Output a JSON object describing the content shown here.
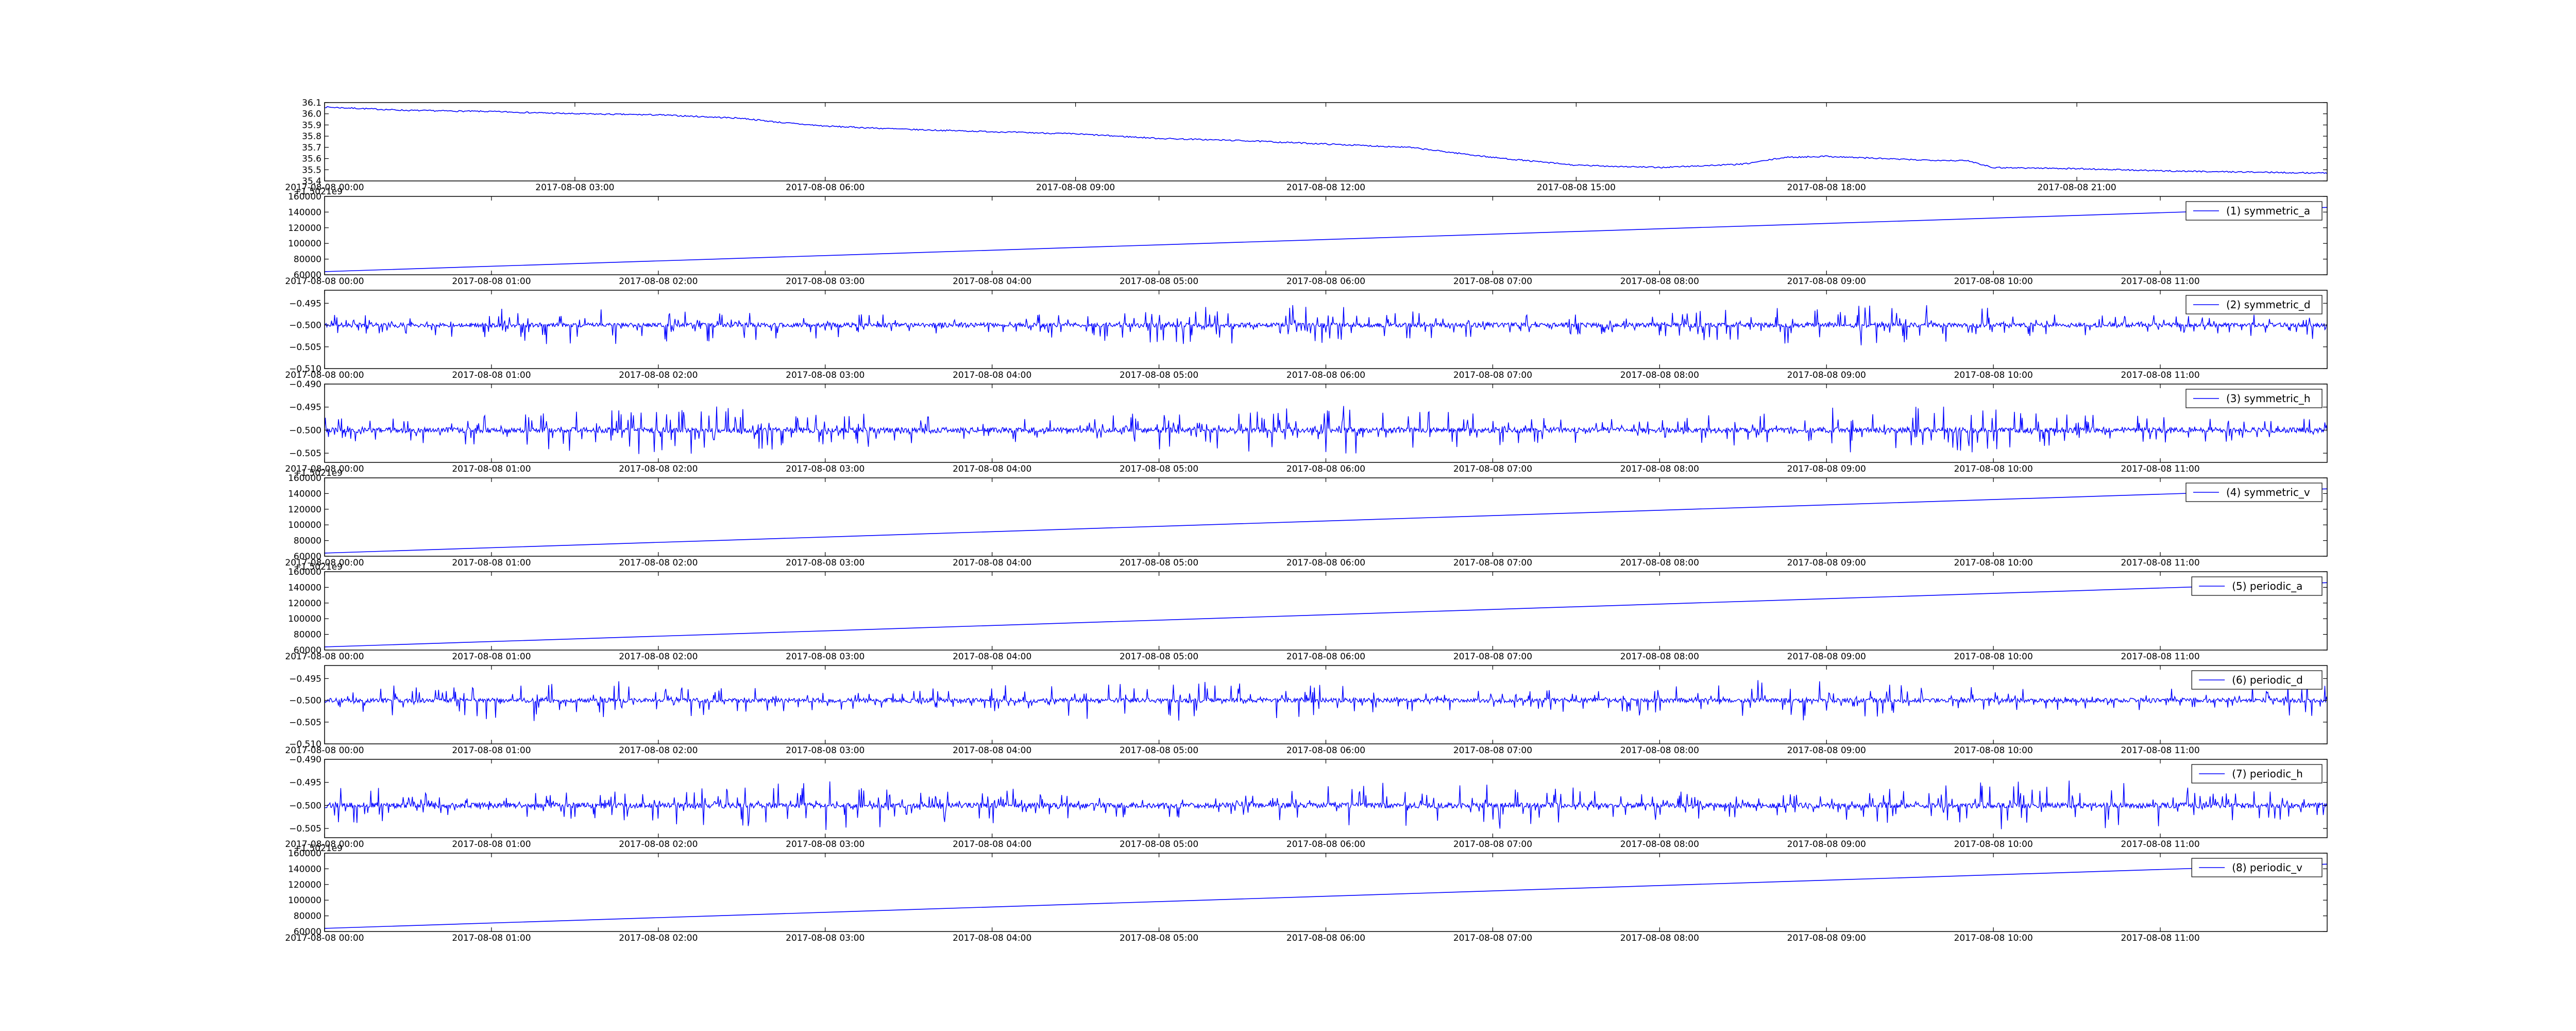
{
  "chart_data": [
    {
      "type": "line",
      "color": "#0000ff",
      "grid": false,
      "legend": "",
      "ylim": [
        35.4,
        36.1
      ],
      "yticks": [
        "35.4",
        "35.5",
        "35.6",
        "35.7",
        "35.8",
        "35.9",
        "36.0",
        "36.1"
      ],
      "xlim": [
        0,
        24
      ],
      "x_tick_positions": [
        0,
        3,
        6,
        9,
        12,
        15,
        18,
        21
      ],
      "x_tick_labels": [
        "2017-08-08 00:00",
        "2017-08-08 03:00",
        "2017-08-08 06:00",
        "2017-08-08 09:00",
        "2017-08-08 12:00",
        "2017-08-08 15:00",
        "2017-08-08 18:00",
        "2017-08-08 21:00"
      ],
      "offset_text": "",
      "series": [
        {
          "shape": "profile",
          "points": [
            [
              0,
              36.06
            ],
            [
              1,
              36.03
            ],
            [
              2,
              36.02
            ],
            [
              3,
              36.0
            ],
            [
              4,
              35.99
            ],
            [
              5,
              35.96
            ],
            [
              5.5,
              35.92
            ],
            [
              6,
              35.89
            ],
            [
              7,
              35.86
            ],
            [
              8,
              35.84
            ],
            [
              9,
              35.82
            ],
            [
              10,
              35.78
            ],
            [
              11,
              35.76
            ],
            [
              12,
              35.73
            ],
            [
              13,
              35.7
            ],
            [
              14,
              35.61
            ],
            [
              15,
              35.54
            ],
            [
              16,
              35.52
            ],
            [
              17,
              35.55
            ],
            [
              17.5,
              35.61
            ],
            [
              18,
              35.62
            ],
            [
              19,
              35.59
            ],
            [
              19.7,
              35.58
            ],
            [
              20,
              35.52
            ],
            [
              21,
              35.51
            ],
            [
              22,
              35.49
            ],
            [
              23,
              35.48
            ],
            [
              24,
              35.47
            ]
          ],
          "noise": 0.006
        }
      ]
    },
    {
      "type": "line",
      "color": "#0000ff",
      "grid": false,
      "legend": "upper right",
      "ylim": [
        60000,
        160000
      ],
      "yticks": [
        "60000",
        "80000",
        "100000",
        "120000",
        "140000",
        "160000"
      ],
      "xlim": [
        0,
        12
      ],
      "x_tick_positions": [
        0,
        1,
        2,
        3,
        4,
        5,
        6,
        7,
        8,
        9,
        10,
        11
      ],
      "x_tick_labels": [
        "2017-08-08 00:00",
        "2017-08-08 01:00",
        "2017-08-08 02:00",
        "2017-08-08 03:00",
        "2017-08-08 04:00",
        "2017-08-08 05:00",
        "2017-08-08 06:00",
        "2017-08-08 07:00",
        "2017-08-08 08:00",
        "2017-08-08 09:00",
        "2017-08-08 10:00",
        "2017-08-08 11:00"
      ],
      "offset_text": "+1.5021e9",
      "series": [
        {
          "name": "(1) symmetric_a",
          "shape": "linear",
          "points": [
            [
              0,
              64000
            ],
            [
              12,
              146000
            ]
          ]
        }
      ]
    },
    {
      "type": "line",
      "color": "#0000ff",
      "grid": false,
      "legend": "upper right",
      "ylim": [
        -0.51,
        -0.492
      ],
      "yticks": [
        "−0.510",
        "−0.505",
        "−0.500",
        "−0.495"
      ],
      "ytick_values": [
        -0.51,
        -0.505,
        -0.5,
        -0.495
      ],
      "xlim": [
        0,
        12
      ],
      "x_tick_positions": [
        0,
        1,
        2,
        3,
        4,
        5,
        6,
        7,
        8,
        9,
        10,
        11
      ],
      "x_tick_labels": [
        "2017-08-08 00:00",
        "2017-08-08 01:00",
        "2017-08-08 02:00",
        "2017-08-08 03:00",
        "2017-08-08 04:00",
        "2017-08-08 05:00",
        "2017-08-08 06:00",
        "2017-08-08 07:00",
        "2017-08-08 08:00",
        "2017-08-08 09:00",
        "2017-08-08 10:00",
        "2017-08-08 11:00"
      ],
      "offset_text": "",
      "series": [
        {
          "name": "(2) symmetric_d",
          "shape": "spiky",
          "baseline": -0.5,
          "amplitude": 0.004,
          "seed": 11
        }
      ]
    },
    {
      "type": "line",
      "color": "#0000ff",
      "grid": false,
      "legend": "upper right",
      "ylim": [
        -0.507,
        -0.49
      ],
      "yticks": [
        "−0.505",
        "−0.500",
        "−0.495",
        "−0.490"
      ],
      "ytick_values": [
        -0.505,
        -0.5,
        -0.495,
        -0.49
      ],
      "xlim": [
        0,
        12
      ],
      "x_tick_positions": [
        0,
        1,
        2,
        3,
        4,
        5,
        6,
        7,
        8,
        9,
        10,
        11
      ],
      "x_tick_labels": [
        "2017-08-08 00:00",
        "2017-08-08 01:00",
        "2017-08-08 02:00",
        "2017-08-08 03:00",
        "2017-08-08 04:00",
        "2017-08-08 05:00",
        "2017-08-08 06:00",
        "2017-08-08 07:00",
        "2017-08-08 08:00",
        "2017-08-08 09:00",
        "2017-08-08 10:00",
        "2017-08-08 11:00"
      ],
      "offset_text": "",
      "series": [
        {
          "name": "(3) symmetric_h",
          "shape": "spiky",
          "baseline": -0.5,
          "amplitude": 0.0045,
          "seed": 23
        }
      ]
    },
    {
      "type": "line",
      "color": "#0000ff",
      "grid": false,
      "legend": "upper right",
      "ylim": [
        60000,
        160000
      ],
      "yticks": [
        "60000",
        "80000",
        "100000",
        "120000",
        "140000",
        "160000"
      ],
      "xlim": [
        0,
        12
      ],
      "x_tick_positions": [
        0,
        1,
        2,
        3,
        4,
        5,
        6,
        7,
        8,
        9,
        10,
        11
      ],
      "x_tick_labels": [
        "2017-08-08 00:00",
        "2017-08-08 01:00",
        "2017-08-08 02:00",
        "2017-08-08 03:00",
        "2017-08-08 04:00",
        "2017-08-08 05:00",
        "2017-08-08 06:00",
        "2017-08-08 07:00",
        "2017-08-08 08:00",
        "2017-08-08 09:00",
        "2017-08-08 10:00",
        "2017-08-08 11:00"
      ],
      "offset_text": "+1.5021e9",
      "series": [
        {
          "name": "(4) symmetric_v",
          "shape": "linear",
          "points": [
            [
              0,
              64000
            ],
            [
              12,
              146000
            ]
          ]
        }
      ]
    },
    {
      "type": "line",
      "color": "#0000ff",
      "grid": false,
      "legend": "upper right",
      "ylim": [
        60000,
        160000
      ],
      "yticks": [
        "60000",
        "80000",
        "100000",
        "120000",
        "140000",
        "160000"
      ],
      "xlim": [
        0,
        12
      ],
      "x_tick_positions": [
        0,
        1,
        2,
        3,
        4,
        5,
        6,
        7,
        8,
        9,
        10,
        11
      ],
      "x_tick_labels": [
        "2017-08-08 00:00",
        "2017-08-08 01:00",
        "2017-08-08 02:00",
        "2017-08-08 03:00",
        "2017-08-08 04:00",
        "2017-08-08 05:00",
        "2017-08-08 06:00",
        "2017-08-08 07:00",
        "2017-08-08 08:00",
        "2017-08-08 09:00",
        "2017-08-08 10:00",
        "2017-08-08 11:00"
      ],
      "offset_text": "+1.5021e9",
      "series": [
        {
          "name": "(5) periodic_a",
          "shape": "linear",
          "points": [
            [
              0,
              64000
            ],
            [
              12,
              146000
            ]
          ]
        }
      ]
    },
    {
      "type": "line",
      "color": "#0000ff",
      "grid": false,
      "legend": "upper right",
      "ylim": [
        -0.51,
        -0.492
      ],
      "yticks": [
        "−0.510",
        "−0.505",
        "−0.500",
        "−0.495"
      ],
      "ytick_values": [
        -0.51,
        -0.505,
        -0.5,
        -0.495
      ],
      "xlim": [
        0,
        12
      ],
      "x_tick_positions": [
        0,
        1,
        2,
        3,
        4,
        5,
        6,
        7,
        8,
        9,
        10,
        11
      ],
      "x_tick_labels": [
        "2017-08-08 00:00",
        "2017-08-08 01:00",
        "2017-08-08 02:00",
        "2017-08-08 03:00",
        "2017-08-08 04:00",
        "2017-08-08 05:00",
        "2017-08-08 06:00",
        "2017-08-08 07:00",
        "2017-08-08 08:00",
        "2017-08-08 09:00",
        "2017-08-08 10:00",
        "2017-08-08 11:00"
      ],
      "offset_text": "",
      "series": [
        {
          "name": "(6) periodic_d",
          "shape": "spiky",
          "baseline": -0.5,
          "amplitude": 0.004,
          "seed": 37
        }
      ]
    },
    {
      "type": "line",
      "color": "#0000ff",
      "grid": false,
      "legend": "upper right",
      "ylim": [
        -0.507,
        -0.49
      ],
      "yticks": [
        "−0.505",
        "−0.500",
        "−0.495",
        "−0.490"
      ],
      "ytick_values": [
        -0.505,
        -0.5,
        -0.495,
        -0.49
      ],
      "xlim": [
        0,
        12
      ],
      "x_tick_positions": [
        0,
        1,
        2,
        3,
        4,
        5,
        6,
        7,
        8,
        9,
        10,
        11
      ],
      "x_tick_labels": [
        "2017-08-08 00:00",
        "2017-08-08 01:00",
        "2017-08-08 02:00",
        "2017-08-08 03:00",
        "2017-08-08 04:00",
        "2017-08-08 05:00",
        "2017-08-08 06:00",
        "2017-08-08 07:00",
        "2017-08-08 08:00",
        "2017-08-08 09:00",
        "2017-08-08 10:00",
        "2017-08-08 11:00"
      ],
      "offset_text": "",
      "series": [
        {
          "name": "(7) periodic_h",
          "shape": "spiky",
          "baseline": -0.5,
          "amplitude": 0.0045,
          "seed": 53
        }
      ]
    },
    {
      "type": "line",
      "color": "#0000ff",
      "grid": false,
      "legend": "upper right",
      "ylim": [
        60000,
        160000
      ],
      "yticks": [
        "60000",
        "80000",
        "100000",
        "120000",
        "140000",
        "160000"
      ],
      "xlim": [
        0,
        12
      ],
      "x_tick_positions": [
        0,
        1,
        2,
        3,
        4,
        5,
        6,
        7,
        8,
        9,
        10,
        11
      ],
      "x_tick_labels": [
        "2017-08-08 00:00",
        "2017-08-08 01:00",
        "2017-08-08 02:00",
        "2017-08-08 03:00",
        "2017-08-08 04:00",
        "2017-08-08 05:00",
        "2017-08-08 06:00",
        "2017-08-08 07:00",
        "2017-08-08 08:00",
        "2017-08-08 09:00",
        "2017-08-08 10:00",
        "2017-08-08 11:00"
      ],
      "offset_text": "+1.5021e9",
      "series": [
        {
          "name": "(8) periodic_v",
          "shape": "linear",
          "points": [
            [
              0,
              64000
            ],
            [
              12,
              146000
            ]
          ]
        }
      ]
    }
  ]
}
